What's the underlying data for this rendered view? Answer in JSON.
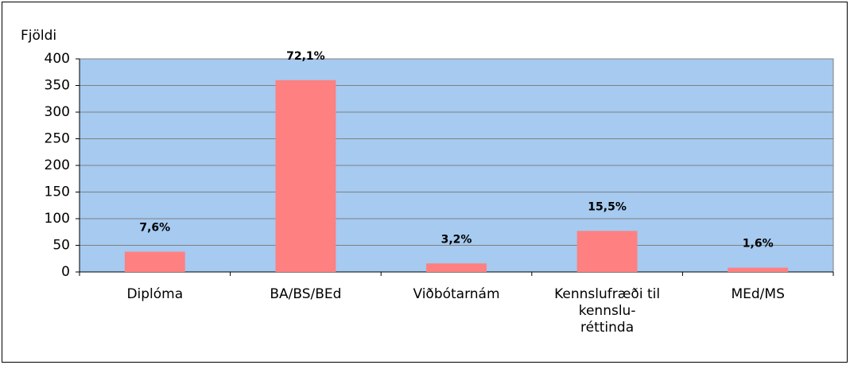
{
  "chart_data": {
    "type": "bar",
    "y_axis_label": "Fjöldi",
    "categories": [
      "Diplóma",
      "BA/BS/BEd",
      "Viðbótarnám",
      "Kennslufræði til\nkennslu-\nréttinda",
      "MEd/MS"
    ],
    "values": [
      38,
      360,
      16,
      77,
      8
    ],
    "annotations": [
      "7,6%",
      "72,1%",
      "3,2%",
      "15,5%",
      "1,6%"
    ],
    "color": "#ff8080",
    "plot_background": "#a6caf0",
    "ylim": [
      0,
      400
    ],
    "yticks": [
      0,
      50,
      100,
      150,
      200,
      250,
      300,
      350,
      400
    ],
    "grid": true
  }
}
